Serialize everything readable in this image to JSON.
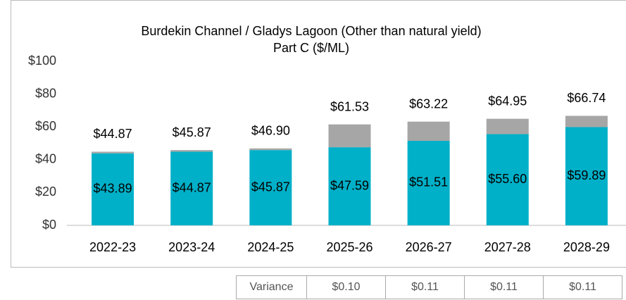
{
  "chart_data": {
    "type": "stacked-bar",
    "title": "Burdekin Channel / Gladys Lagoon (Other than natural yield)",
    "subtitle": "Part C ($/ML)",
    "categories": [
      "2022-23",
      "2023-24",
      "2024-25",
      "2025-26",
      "2026-27",
      "2027-28",
      "2028-29"
    ],
    "series": [
      {
        "color": "#00b0c8",
        "values": [
          43.89,
          44.87,
          45.87,
          47.59,
          51.51,
          55.6,
          59.89
        ],
        "value_labels": [
          "$43.89",
          "$44.87",
          "$45.87",
          "$47.59",
          "$51.51",
          "$55.60",
          "$59.89"
        ]
      },
      {
        "color": "#a6a6a6",
        "values": [
          0.98,
          1.0,
          1.03,
          13.94,
          11.71,
          9.35,
          6.85
        ]
      }
    ],
    "totals": [
      44.87,
      45.87,
      46.9,
      61.53,
      63.22,
      64.95,
      66.74
    ],
    "total_labels": [
      "$44.87",
      "$45.87",
      "$46.90",
      "$61.53",
      "$63.22",
      "$64.95",
      "$66.74"
    ],
    "ylim": [
      0,
      100
    ],
    "yticks": [
      {
        "value": 0,
        "label": "$0"
      },
      {
        "value": 20,
        "label": "$20"
      },
      {
        "value": 40,
        "label": "$40"
      },
      {
        "value": 60,
        "label": "$60"
      },
      {
        "value": 80,
        "label": "$80"
      },
      {
        "value": 100,
        "label": "$100"
      }
    ],
    "grid": false
  },
  "variance_table": {
    "label": "Variance",
    "values": [
      "$0.10",
      "$0.11",
      "$0.11",
      "$0.11"
    ]
  }
}
